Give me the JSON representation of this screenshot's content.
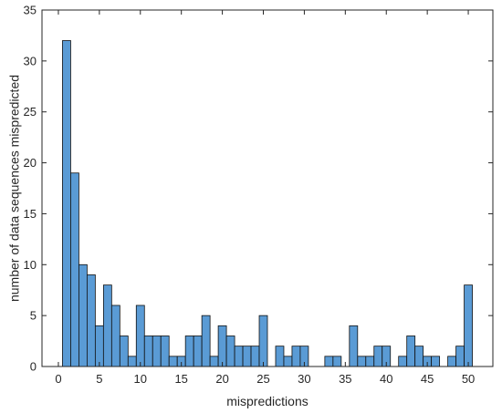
{
  "chart_data": {
    "type": "bar",
    "title": "",
    "xlabel": "mispredictions",
    "ylabel": "number of data sequences mispredicted",
    "xlim": [
      -2,
      53
    ],
    "ylim": [
      0,
      35
    ],
    "xticks": [
      0,
      5,
      10,
      15,
      20,
      25,
      30,
      35,
      40,
      45,
      50
    ],
    "yticks": [
      0,
      5,
      10,
      15,
      20,
      25,
      30,
      35
    ],
    "bar_color": "#5a9bd5",
    "grid": false,
    "categories": [
      1,
      2,
      3,
      4,
      5,
      6,
      7,
      8,
      9,
      10,
      11,
      12,
      13,
      14,
      15,
      16,
      17,
      18,
      19,
      20,
      21,
      22,
      23,
      24,
      25,
      26,
      27,
      28,
      29,
      30,
      31,
      32,
      33,
      34,
      35,
      36,
      37,
      38,
      39,
      40,
      41,
      42,
      43,
      44,
      45,
      46,
      47,
      48,
      49,
      50
    ],
    "values": [
      32,
      19,
      10,
      9,
      4,
      8,
      6,
      3,
      1,
      6,
      3,
      3,
      3,
      1,
      1,
      3,
      3,
      5,
      1,
      4,
      3,
      2,
      2,
      2,
      5,
      0,
      2,
      1,
      2,
      2,
      0,
      0,
      1,
      1,
      0,
      4,
      1,
      1,
      2,
      2,
      0,
      1,
      3,
      2,
      1,
      1,
      0,
      1,
      2,
      8
    ]
  }
}
